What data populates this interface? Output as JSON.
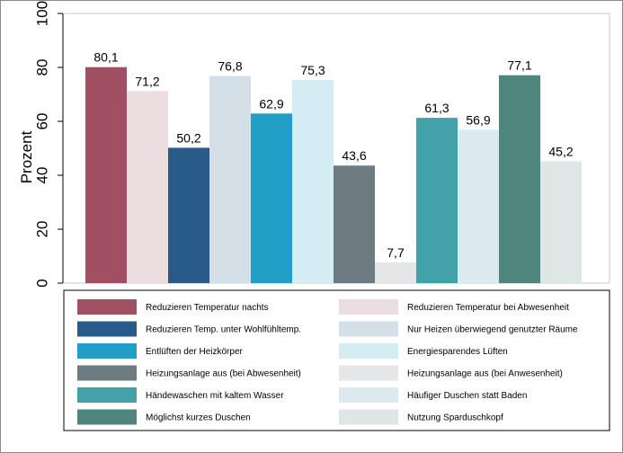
{
  "chart_data": {
    "type": "bar",
    "ylabel": "Prozent",
    "ylim": [
      0,
      100
    ],
    "yticks": [
      0,
      20,
      40,
      60,
      80,
      100
    ],
    "grid": false,
    "legend_position": "bottom",
    "series": [
      {
        "name": "Reduzieren Temperatur nachts",
        "value": 80.1,
        "label": "80,1",
        "color": "#A15063"
      },
      {
        "name": "Reduzieren Temperatur bei Abwesenheit",
        "value": 71.2,
        "label": "71,2",
        "color": "#ECDDE0"
      },
      {
        "name": "Reduzieren Temp. unter Wohlfühltemp.",
        "value": 50.2,
        "label": "50,2",
        "color": "#285B8A"
      },
      {
        "name": "Nur Heizen überwiegend genutzter Räume",
        "value": 76.8,
        "label": "76,8",
        "color": "#D4DFE7"
      },
      {
        "name": "Entlüften der Heizkörper",
        "value": 62.9,
        "label": "62,9",
        "color": "#229FC7"
      },
      {
        "name": "Energiesparendes Lüften",
        "value": 75.3,
        "label": "75,3",
        "color": "#D4ECF4"
      },
      {
        "name": "Heizungsanlage aus (bei Abwesenheit)",
        "value": 43.6,
        "label": "43,6",
        "color": "#6E7B83"
      },
      {
        "name": "Heizungsanlage aus (bei Anwesenheit)",
        "value": 7.7,
        "label": "7,7",
        "color": "#E4E6E8"
      },
      {
        "name": "Händewaschen mit kaltem Wasser",
        "value": 61.3,
        "label": "61,3",
        "color": "#43A2A9"
      },
      {
        "name": "Häufiger Duschen statt Baden",
        "value": 56.9,
        "label": "56,9",
        "color": "#DCEAF0"
      },
      {
        "name": "Möglichst kurzes Duschen",
        "value": 77.1,
        "label": "77,1",
        "color": "#4E867D"
      },
      {
        "name": "Nutzung Sparduschkopf",
        "value": 45.2,
        "label": "45,2",
        "color": "#DFE6E6"
      }
    ]
  }
}
